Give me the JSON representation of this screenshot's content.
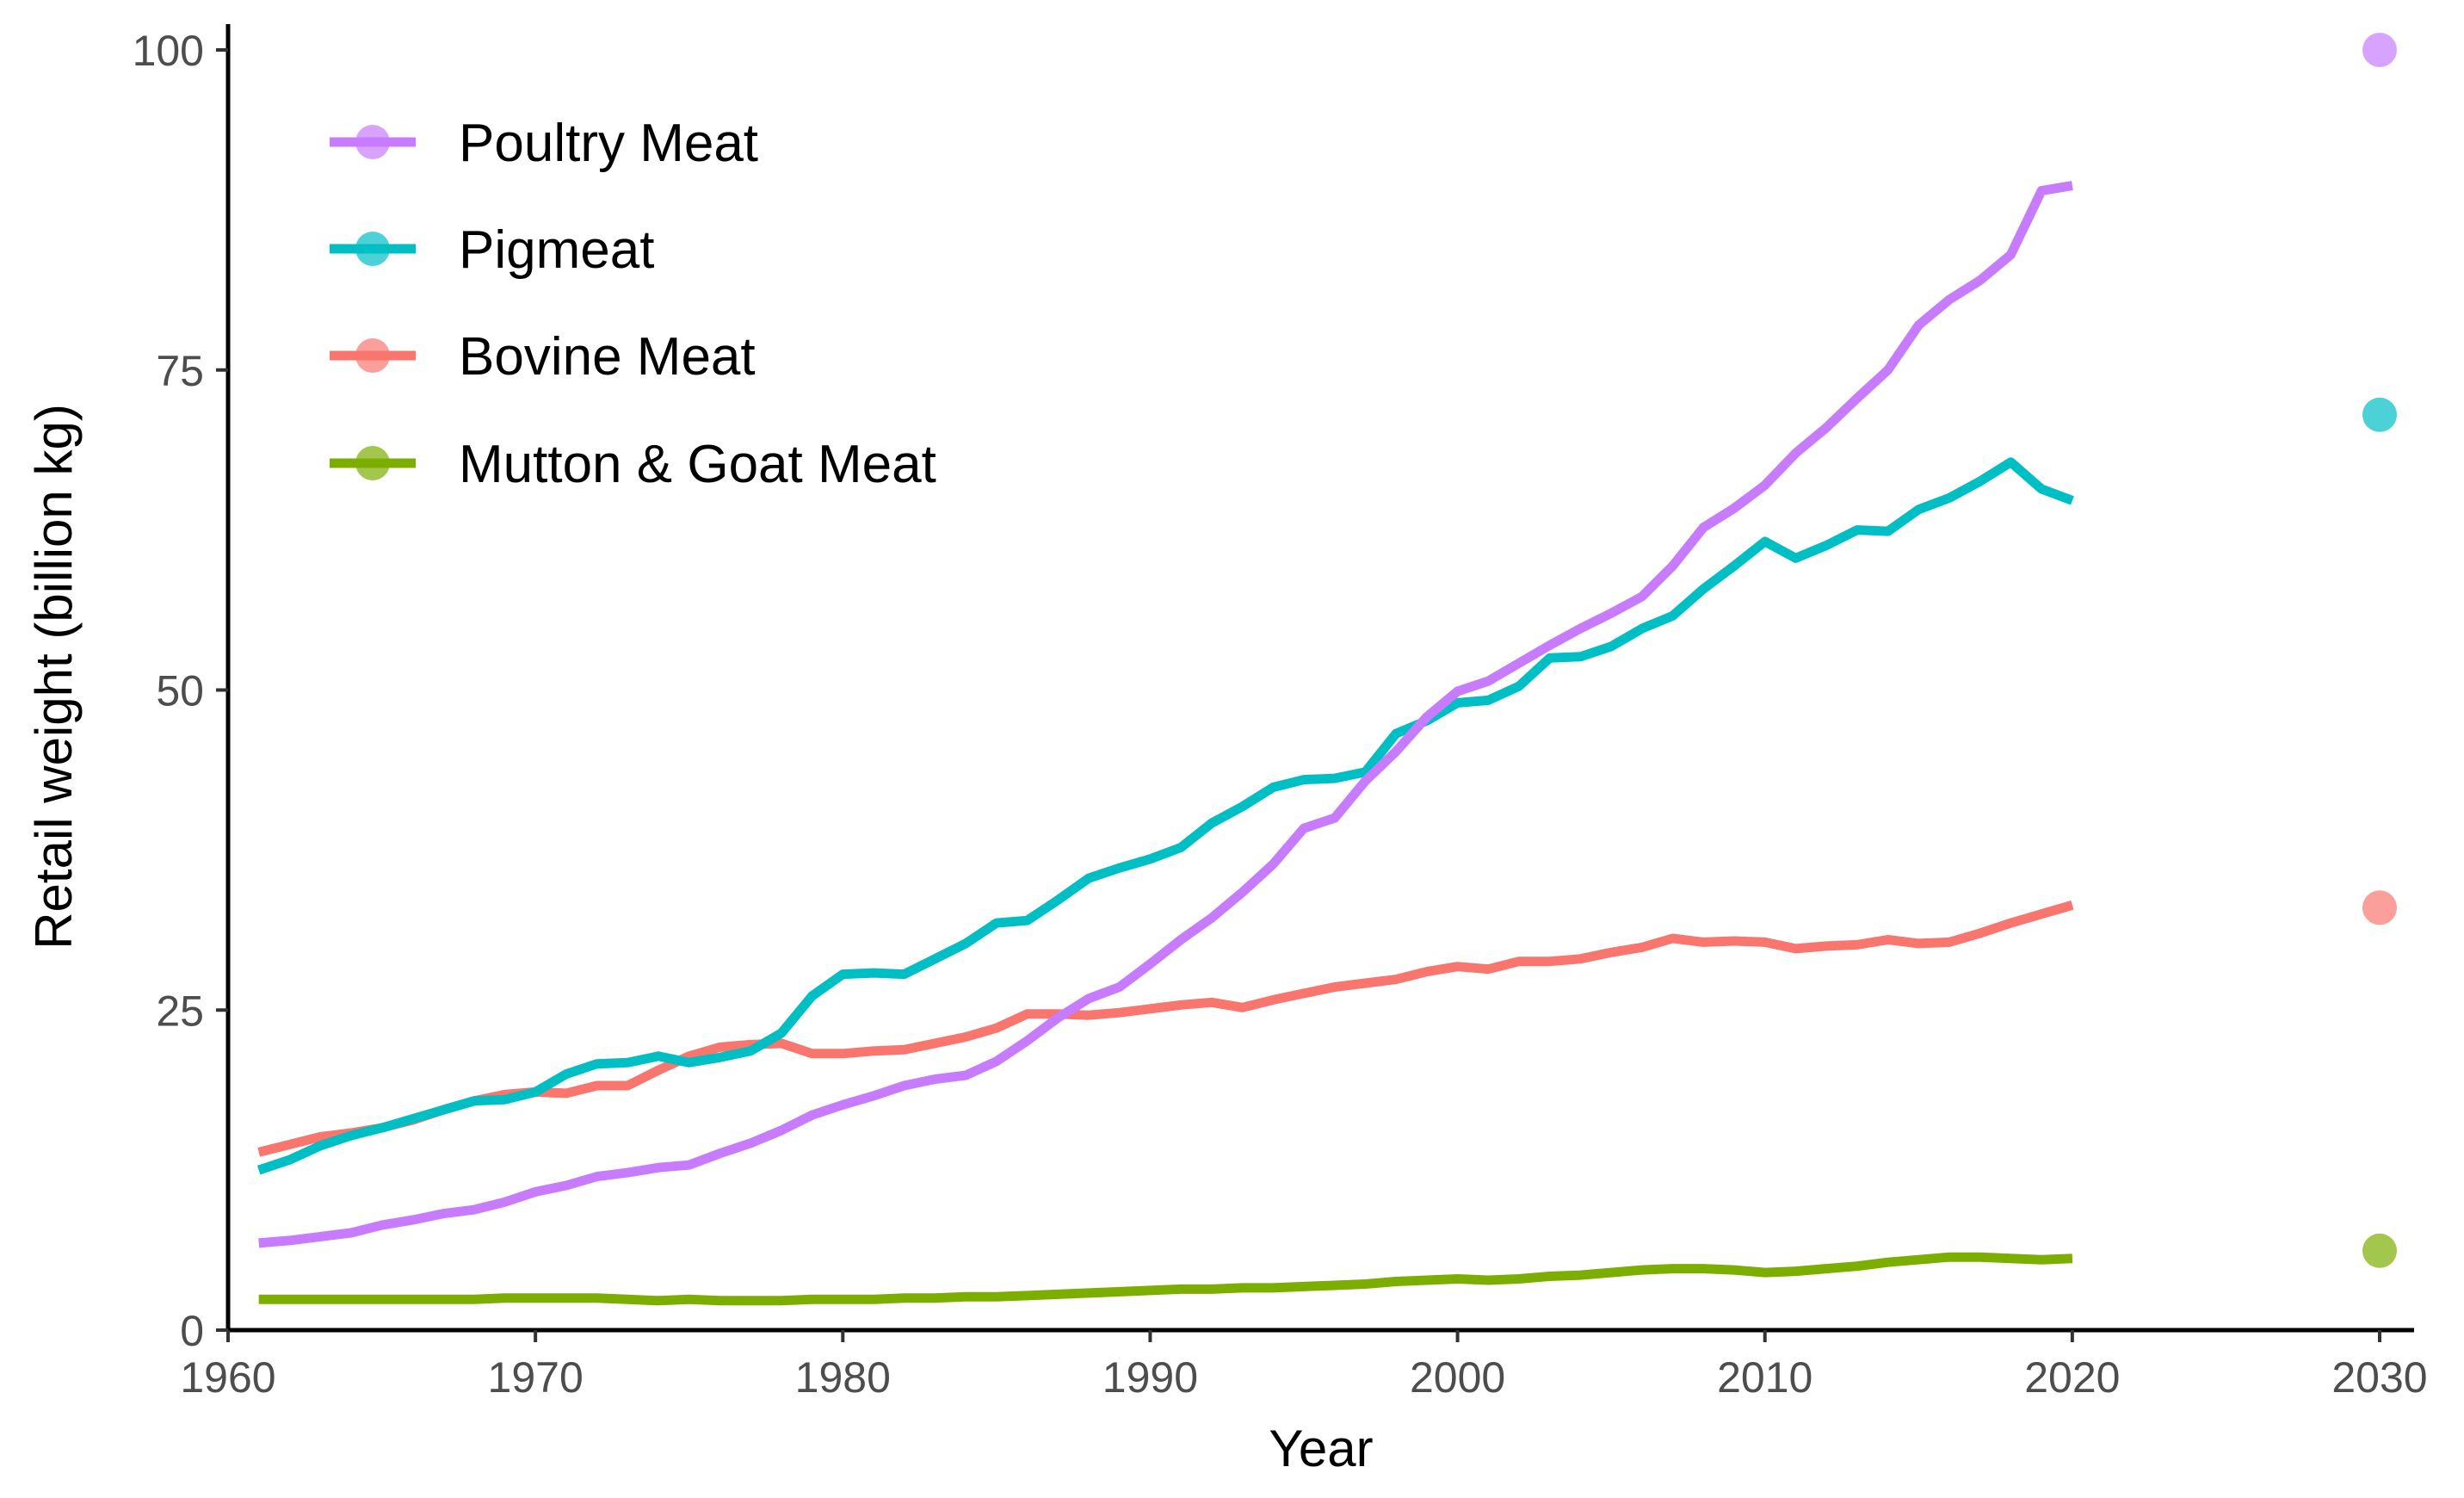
{
  "chart_data": {
    "type": "line",
    "title": "",
    "xlabel": "Year",
    "ylabel": "Retail weight (billion kg)",
    "xlim": [
      1960,
      2030
    ],
    "ylim": [
      0,
      100
    ],
    "x_ticks": [
      1960,
      1970,
      1980,
      1990,
      2000,
      2010,
      2020,
      2030
    ],
    "y_ticks": [
      0,
      25,
      50,
      75,
      100
    ],
    "x_tick_labels": [
      "1960",
      "1970",
      "1980",
      "1990",
      "2000",
      "2010",
      "2020",
      "2030"
    ],
    "y_tick_labels": [
      "0",
      "25",
      "50",
      "75",
      "100"
    ],
    "grid": false,
    "legend_position": "top-left",
    "x": [
      1961,
      1962,
      1963,
      1964,
      1965,
      1966,
      1967,
      1968,
      1969,
      1970,
      1971,
      1972,
      1973,
      1974,
      1975,
      1976,
      1977,
      1978,
      1979,
      1980,
      1981,
      1982,
      1983,
      1984,
      1985,
      1986,
      1987,
      1988,
      1989,
      1990,
      1991,
      1992,
      1993,
      1994,
      1995,
      1996,
      1997,
      1998,
      1999,
      2000,
      2001,
      2002,
      2003,
      2004,
      2005,
      2006,
      2007,
      2008,
      2009,
      2010,
      2011,
      2012,
      2013,
      2014,
      2015,
      2016,
      2017,
      2018,
      2019,
      2020
    ],
    "series": [
      {
        "name": "Poultry Meat",
        "color": "#c77cff",
        "values": [
          6.8,
          7.0,
          7.3,
          7.6,
          8.2,
          8.6,
          9.1,
          9.4,
          10.0,
          10.8,
          11.3,
          12.0,
          12.3,
          12.7,
          12.9,
          13.8,
          14.6,
          15.6,
          16.8,
          17.6,
          18.3,
          19.1,
          19.6,
          19.9,
          21.0,
          22.6,
          24.4,
          25.9,
          26.8,
          28.6,
          30.5,
          32.2,
          34.2,
          36.4,
          39.2,
          40.0,
          42.9,
          45.2,
          47.9,
          49.9,
          50.7,
          52.1,
          53.5,
          54.8,
          56.0,
          57.3,
          59.7,
          62.7,
          64.2,
          66.0,
          68.5,
          70.5,
          72.8,
          75.0,
          78.5,
          80.5,
          82.0,
          84.0,
          89.0,
          89.4
        ]
      },
      {
        "name": "Pigmeat",
        "color": "#00bfc4",
        "values": [
          12.5,
          13.3,
          14.4,
          15.2,
          15.8,
          16.5,
          17.2,
          17.9,
          18.0,
          18.6,
          20.0,
          20.8,
          20.9,
          21.4,
          20.9,
          21.3,
          21.8,
          23.2,
          26.1,
          27.8,
          27.9,
          27.8,
          29.0,
          30.2,
          31.8,
          32.0,
          33.6,
          35.3,
          36.1,
          36.8,
          37.7,
          39.6,
          40.9,
          42.4,
          43.0,
          43.1,
          43.6,
          46.6,
          47.6,
          49.0,
          49.2,
          50.3,
          52.5,
          52.6,
          53.4,
          54.8,
          55.8,
          57.9,
          59.7,
          61.6,
          60.3,
          61.3,
          62.5,
          62.4,
          64.1,
          65.0,
          66.3,
          67.8,
          65.7,
          64.8
        ]
      },
      {
        "name": "Bovine Meat",
        "color": "#f8766d",
        "values": [
          13.9,
          14.5,
          15.1,
          15.4,
          15.8,
          16.4,
          17.2,
          17.9,
          18.4,
          18.6,
          18.5,
          19.1,
          19.1,
          20.3,
          21.4,
          22.1,
          22.3,
          22.4,
          21.6,
          21.6,
          21.8,
          21.9,
          22.4,
          22.9,
          23.6,
          24.7,
          24.7,
          24.6,
          24.8,
          25.1,
          25.4,
          25.6,
          25.2,
          25.8,
          26.3,
          26.8,
          27.1,
          27.4,
          28.0,
          28.4,
          28.2,
          28.8,
          28.8,
          29.0,
          29.5,
          29.9,
          30.6,
          30.3,
          30.4,
          30.3,
          29.8,
          30.0,
          30.1,
          30.5,
          30.2,
          30.3,
          31.0,
          31.8,
          32.5,
          33.2
        ]
      },
      {
        "name": "Mutton & Goat Meat",
        "color": "#7cae00",
        "values": [
          2.4,
          2.4,
          2.4,
          2.4,
          2.4,
          2.4,
          2.4,
          2.4,
          2.5,
          2.5,
          2.5,
          2.5,
          2.4,
          2.3,
          2.4,
          2.3,
          2.3,
          2.3,
          2.4,
          2.4,
          2.4,
          2.5,
          2.5,
          2.6,
          2.6,
          2.7,
          2.8,
          2.9,
          3.0,
          3.1,
          3.2,
          3.2,
          3.3,
          3.3,
          3.4,
          3.5,
          3.6,
          3.8,
          3.9,
          4.0,
          3.9,
          4.0,
          4.2,
          4.3,
          4.5,
          4.7,
          4.8,
          4.8,
          4.7,
          4.5,
          4.6,
          4.8,
          5.0,
          5.3,
          5.5,
          5.7,
          5.7,
          5.6,
          5.5,
          5.6
        ]
      }
    ],
    "projection_points": [
      {
        "name": "Poultry Meat",
        "x": 2030,
        "y": 100,
        "color": "#c77cff"
      },
      {
        "name": "Pigmeat",
        "x": 2030,
        "y": 71.5,
        "color": "#00bfc4"
      },
      {
        "name": "Bovine Meat",
        "x": 2030,
        "y": 33.0,
        "color": "#f8766d"
      },
      {
        "name": "Mutton & Goat Meat",
        "x": 2030,
        "y": 6.2,
        "color": "#7cae00"
      }
    ],
    "legend": [
      {
        "label": "Poultry Meat",
        "color": "#c77cff"
      },
      {
        "label": "Pigmeat",
        "color": "#00bfc4"
      },
      {
        "label": "Bovine Meat",
        "color": "#f8766d"
      },
      {
        "label": "Mutton & Goat Meat",
        "color": "#7cae00"
      }
    ]
  }
}
